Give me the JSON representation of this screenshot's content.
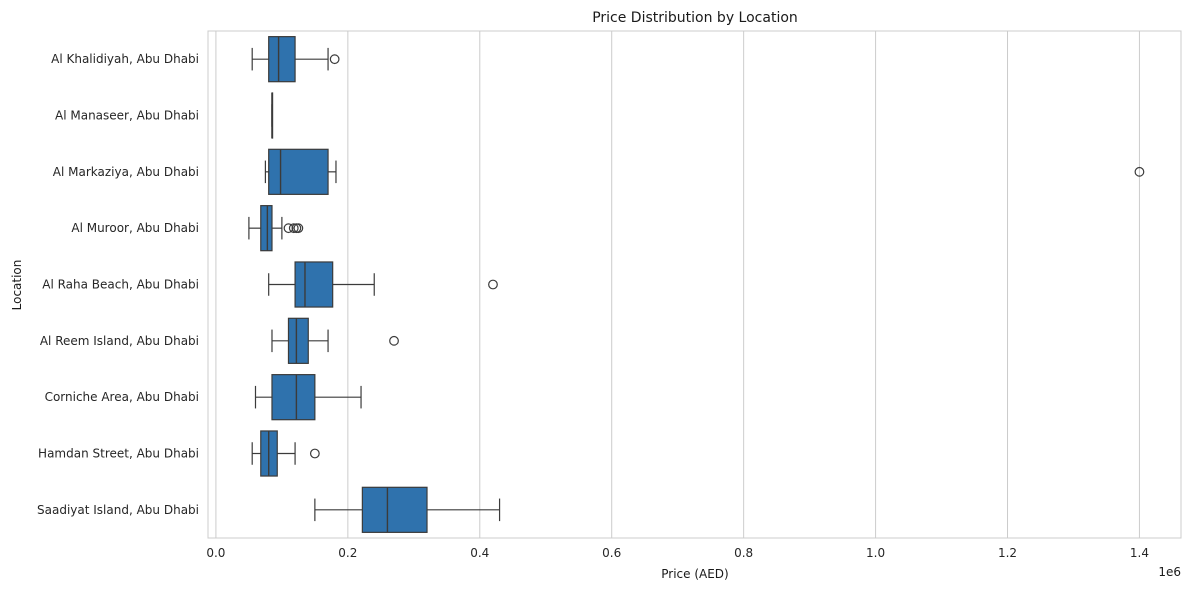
{
  "chart_data": {
    "type": "boxplot",
    "orientation": "horizontal",
    "title": "Price Distribution by Location",
    "xlabel": "Price (AED)",
    "ylabel": "Location",
    "x_offset_label": "1e6",
    "xlim": [
      -12000,
      1463000
    ],
    "xticks": [
      0,
      200000,
      400000,
      600000,
      800000,
      1000000,
      1200000,
      1400000
    ],
    "xtick_labels": [
      "0.0",
      "0.2",
      "0.4",
      "0.6",
      "0.8",
      "1.0",
      "1.2",
      "1.4"
    ],
    "grid": "vertical",
    "box_color": "#2f72ad",
    "categories": [
      "Al Khalidiyah, Abu Dhabi",
      "Al Manaseer, Abu Dhabi",
      "Al Markaziya, Abu Dhabi",
      "Al Muroor, Abu Dhabi",
      "Al Raha Beach, Abu Dhabi",
      "Al Reem Island, Abu Dhabi",
      "Corniche Area, Abu Dhabi",
      "Hamdan Street, Abu Dhabi",
      "Saadiyat Island, Abu Dhabi"
    ],
    "boxes": [
      {
        "whislo": 55000,
        "q1": 80000,
        "med": 95000,
        "q3": 120000,
        "whishi": 170000,
        "fliers": [
          180000
        ]
      },
      {
        "whislo": 85000,
        "q1": 85000,
        "med": 85000,
        "q3": 85000,
        "whishi": 85000,
        "fliers": []
      },
      {
        "whislo": 75000,
        "q1": 80000,
        "med": 98000,
        "q3": 170000,
        "whishi": 182000,
        "fliers": [
          1400000
        ]
      },
      {
        "whislo": 50000,
        "q1": 68000,
        "med": 78000,
        "q3": 85000,
        "whishi": 100000,
        "fliers": [
          110000,
          118000,
          122000,
          125000
        ]
      },
      {
        "whislo": 80000,
        "q1": 120000,
        "med": 135000,
        "q3": 177000,
        "whishi": 240000,
        "fliers": [
          420000
        ]
      },
      {
        "whislo": 85000,
        "q1": 110000,
        "med": 122000,
        "q3": 140000,
        "whishi": 170000,
        "fliers": [
          270000
        ]
      },
      {
        "whislo": 60000,
        "q1": 85000,
        "med": 122000,
        "q3": 150000,
        "whishi": 220000,
        "fliers": []
      },
      {
        "whislo": 55000,
        "q1": 68000,
        "med": 80000,
        "q3": 93000,
        "whishi": 120000,
        "fliers": [
          150000
        ]
      },
      {
        "whislo": 150000,
        "q1": 222000,
        "med": 260000,
        "q3": 320000,
        "whishi": 430000,
        "fliers": []
      }
    ]
  }
}
